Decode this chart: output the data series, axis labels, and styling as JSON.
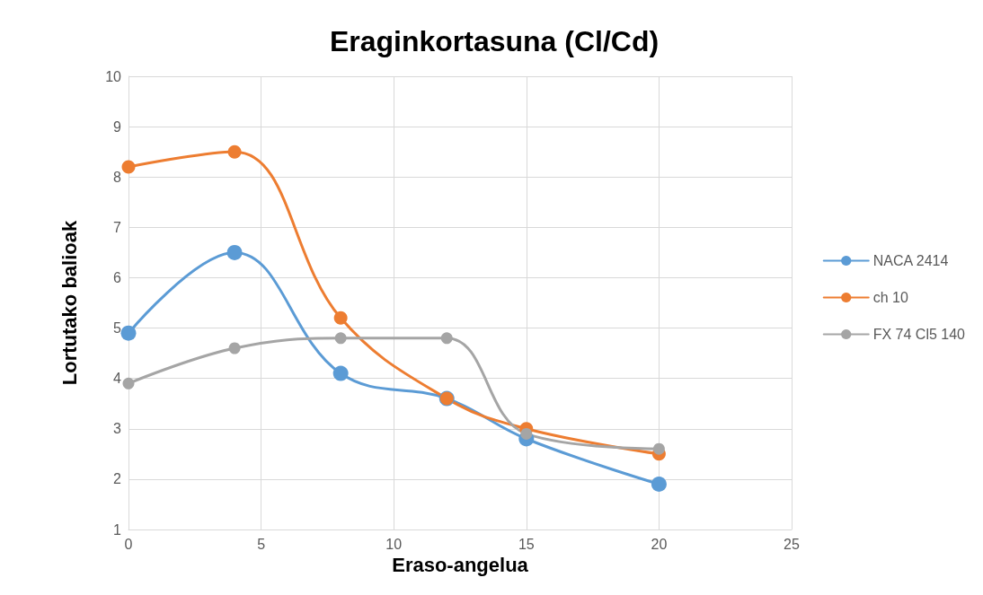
{
  "chart_data": {
    "type": "line",
    "title": "Eraginkortasuna (Cl/Cd)",
    "xlabel": "Eraso-angelua",
    "ylabel": "Lortutako balioak",
    "x": [
      0,
      4,
      8,
      12,
      15,
      20
    ],
    "series": [
      {
        "name": "NACA 2414",
        "color": "#5b9bd5",
        "values": [
          4.9,
          6.5,
          4.1,
          3.6,
          2.8,
          1.9
        ]
      },
      {
        "name": "ch 10",
        "color": "#ed7d31",
        "values": [
          8.2,
          8.5,
          5.2,
          3.6,
          3.0,
          2.5
        ]
      },
      {
        "name": "FX 74 Cl5 140",
        "color": "#a5a5a5",
        "values": [
          3.9,
          4.6,
          4.8,
          4.8,
          2.9,
          2.6
        ]
      }
    ],
    "xlim": [
      0,
      25
    ],
    "xticks": [
      0,
      5,
      10,
      15,
      20,
      25
    ],
    "ylim": [
      1,
      10
    ],
    "yticks": [
      1,
      2,
      3,
      4,
      5,
      6,
      7,
      8,
      9,
      10
    ],
    "grid": true,
    "legend": "right",
    "marker": "circle",
    "line_style": "solid"
  }
}
